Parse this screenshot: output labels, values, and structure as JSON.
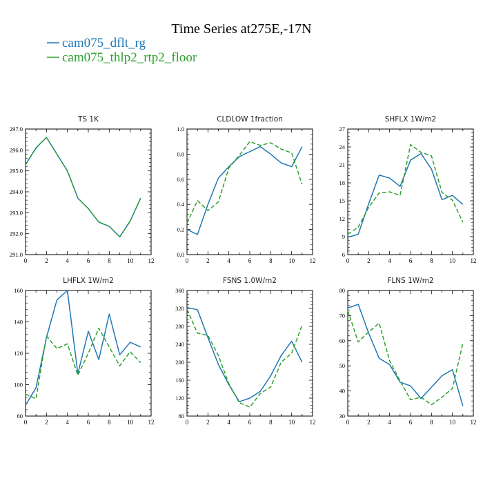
{
  "page": {
    "title": "Time Series at275E,-17N",
    "legend": [
      {
        "name": "cam075_dflt_rg",
        "color": "#1f77b4",
        "dash": "solid"
      },
      {
        "name": "cam075_thlp2_rtp2_floor",
        "color": "#2ca02c",
        "dash": "dashed"
      }
    ]
  },
  "chart_data": [
    {
      "type": "line",
      "title": "TS   1K",
      "x": [
        0,
        1,
        2,
        3,
        4,
        5,
        6,
        7,
        8,
        9,
        10,
        11
      ],
      "xlim": [
        0,
        12
      ],
      "xticks": [
        0,
        2,
        4,
        6,
        8,
        10,
        12
      ],
      "ylim": [
        291.0,
        297.0
      ],
      "yticks": [
        "291.0",
        "292.0",
        "293.0",
        "294.0",
        "295.0",
        "296.0",
        "297.0"
      ],
      "series": [
        {
          "name": "cam075_dflt_rg",
          "values": [
            295.3,
            296.1,
            296.6,
            295.8,
            295.0,
            293.7,
            293.2,
            292.55,
            292.35,
            291.85,
            292.6,
            293.7
          ]
        },
        {
          "name": "cam075_thlp2_rtp2_floor",
          "values": [
            295.3,
            296.1,
            296.6,
            295.8,
            295.0,
            293.7,
            293.2,
            292.55,
            292.35,
            291.85,
            292.6,
            293.7
          ]
        }
      ]
    },
    {
      "type": "line",
      "title": "CLDLOW   1fraction",
      "x": [
        0,
        1,
        2,
        3,
        4,
        5,
        6,
        7,
        8,
        9,
        10,
        11
      ],
      "xlim": [
        0,
        12
      ],
      "xticks": [
        0,
        2,
        4,
        6,
        8,
        10,
        12
      ],
      "ylim": [
        0.0,
        1.0
      ],
      "yticks": [
        "0.0",
        "0.2",
        "0.4",
        "0.6",
        "0.8",
        "1.0"
      ],
      "series": [
        {
          "name": "cam075_dflt_rg",
          "values": [
            0.2,
            0.16,
            0.4,
            0.61,
            0.7,
            0.78,
            0.82,
            0.86,
            0.8,
            0.73,
            0.7,
            0.86
          ]
        },
        {
          "name": "cam075_thlp2_rtp2_floor",
          "values": [
            0.25,
            0.43,
            0.35,
            0.42,
            0.69,
            0.79,
            0.9,
            0.87,
            0.89,
            0.84,
            0.81,
            0.56
          ]
        }
      ]
    },
    {
      "type": "line",
      "title": "SHFLX   1W/m2",
      "x": [
        0,
        1,
        2,
        3,
        4,
        5,
        6,
        7,
        8,
        9,
        10,
        11
      ],
      "xlim": [
        0,
        12
      ],
      "xticks": [
        0,
        2,
        4,
        6,
        8,
        10,
        12
      ],
      "ylim": [
        6,
        27
      ],
      "yticks": [
        "6",
        "9",
        "12",
        "15",
        "18",
        "21",
        "24",
        "27"
      ],
      "series": [
        {
          "name": "cam075_dflt_rg",
          "values": [
            8.9,
            9.4,
            14.5,
            19.3,
            18.8,
            17.4,
            21.8,
            22.9,
            20.3,
            15.2,
            15.9,
            14.4
          ]
        },
        {
          "name": "cam075_thlp2_rtp2_floor",
          "values": [
            9.4,
            10.6,
            13.9,
            16.3,
            16.5,
            15.9,
            24.4,
            23.1,
            22.5,
            16.4,
            15.1,
            11.4
          ]
        }
      ]
    },
    {
      "type": "line",
      "title": "LHFLX   1W/m2",
      "x": [
        0,
        1,
        2,
        3,
        4,
        5,
        6,
        7,
        8,
        9,
        10,
        11
      ],
      "xlim": [
        0,
        12
      ],
      "xticks": [
        0,
        2,
        4,
        6,
        8,
        10,
        12
      ],
      "ylim": [
        80,
        160
      ],
      "yticks": [
        "80",
        "100",
        "120",
        "140",
        "160"
      ],
      "series": [
        {
          "name": "cam075_dflt_rg",
          "values": [
            87,
            98,
            130,
            154,
            160,
            107,
            134,
            116,
            145,
            119,
            127,
            124
          ]
        },
        {
          "name": "cam075_thlp2_rtp2_floor",
          "values": [
            94,
            91,
            131,
            123,
            126,
            106,
            120,
            136,
            124,
            112,
            121,
            114
          ]
        }
      ]
    },
    {
      "type": "line",
      "title": "FSNS   1.0W/m2",
      "x": [
        0,
        1,
        2,
        3,
        4,
        5,
        6,
        7,
        8,
        9,
        10,
        11
      ],
      "xlim": [
        0,
        12
      ],
      "xticks": [
        0,
        2,
        4,
        6,
        8,
        10,
        12
      ],
      "ylim": [
        80,
        360
      ],
      "yticks": [
        "80",
        "120",
        "160",
        "200",
        "240",
        "280",
        "320",
        "360"
      ],
      "series": [
        {
          "name": "cam075_dflt_rg",
          "values": [
            322,
            317,
            255,
            195,
            150,
            112,
            120,
            135,
            170,
            215,
            247,
            200
          ]
        },
        {
          "name": "cam075_thlp2_rtp2_floor",
          "values": [
            318,
            265,
            260,
            215,
            152,
            110,
            100,
            130,
            145,
            200,
            220,
            283
          ]
        }
      ]
    },
    {
      "type": "line",
      "title": "FLNS   1W/m2",
      "x": [
        0,
        1,
        2,
        3,
        4,
        5,
        6,
        7,
        8,
        9,
        10,
        11
      ],
      "xlim": [
        0,
        12
      ],
      "xticks": [
        0,
        2,
        4,
        6,
        8,
        10,
        12
      ],
      "ylim": [
        30,
        80
      ],
      "yticks": [
        "30",
        "40",
        "50",
        "60",
        "70",
        "80"
      ],
      "series": [
        {
          "name": "cam075_dflt_rg",
          "values": [
            73,
            74.5,
            63,
            53,
            50.5,
            43.5,
            42,
            37,
            41.5,
            46,
            48.5,
            34
          ]
        },
        {
          "name": "cam075_thlp2_rtp2_floor",
          "values": [
            72,
            59.5,
            63.5,
            67,
            52,
            44,
            36.5,
            37.5,
            34.5,
            37.5,
            41,
            59
          ]
        }
      ]
    }
  ]
}
